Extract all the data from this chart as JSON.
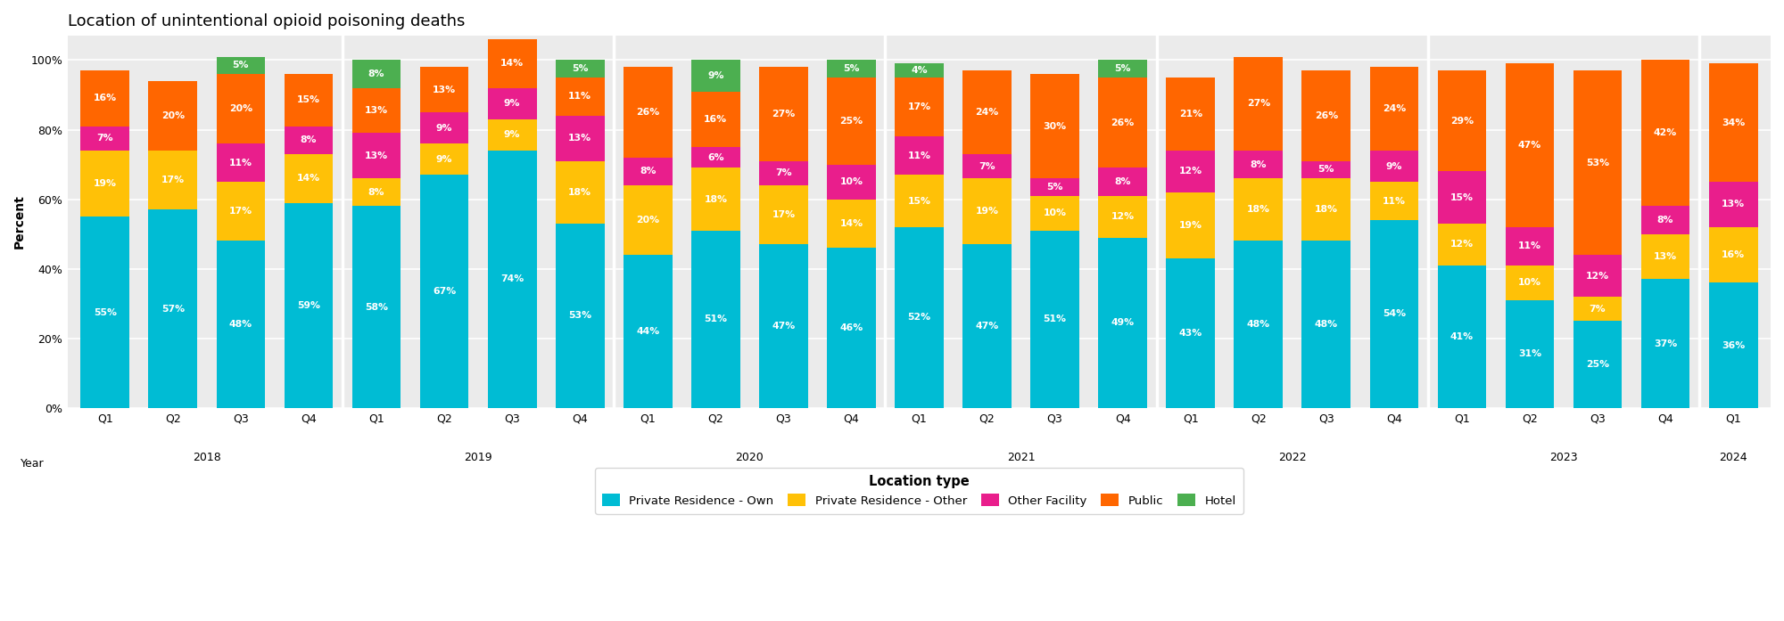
{
  "title": "Location of unintentional opioid poisoning deaths",
  "ylabel": "Percent",
  "quarter_labels": [
    "Q1",
    "Q2",
    "Q3",
    "Q4",
    "Q1",
    "Q2",
    "Q3",
    "Q4",
    "Q1",
    "Q2",
    "Q3",
    "Q4",
    "Q1",
    "Q2",
    "Q3",
    "Q4",
    "Q1",
    "Q2",
    "Q3",
    "Q4",
    "Q1",
    "Q2",
    "Q3",
    "Q4",
    "Q1"
  ],
  "year_labels": [
    "2018",
    "2019",
    "2020",
    "2021",
    "2022",
    "2023",
    "2024"
  ],
  "year_centers": [
    1.5,
    5.5,
    9.5,
    13.5,
    17.5,
    21.5,
    24.0
  ],
  "num_bars": 25,
  "series": {
    "Private Residence - Own": [
      55,
      57,
      48,
      59,
      58,
      67,
      74,
      53,
      44,
      51,
      47,
      46,
      52,
      47,
      51,
      49,
      43,
      48,
      48,
      54,
      41,
      31,
      25,
      37,
      36
    ],
    "Private Residence - Other": [
      19,
      17,
      17,
      14,
      8,
      9,
      9,
      18,
      20,
      18,
      17,
      14,
      15,
      19,
      10,
      12,
      19,
      18,
      18,
      11,
      12,
      10,
      7,
      13,
      16
    ],
    "Other Facility": [
      7,
      0,
      11,
      8,
      13,
      9,
      9,
      13,
      8,
      6,
      7,
      10,
      11,
      7,
      5,
      8,
      12,
      8,
      5,
      9,
      15,
      11,
      12,
      8,
      13
    ],
    "Public": [
      16,
      20,
      20,
      15,
      13,
      13,
      14,
      11,
      26,
      16,
      27,
      25,
      17,
      24,
      30,
      26,
      21,
      27,
      26,
      24,
      29,
      47,
      53,
      42,
      34
    ],
    "Hotel": [
      0,
      0,
      5,
      0,
      8,
      0,
      0,
      5,
      0,
      9,
      0,
      5,
      4,
      0,
      0,
      5,
      0,
      0,
      0,
      0,
      0,
      0,
      0,
      0,
      0
    ]
  },
  "colors": {
    "Private Residence - Own": "#00bcd4",
    "Private Residence - Other": "#ffc107",
    "Other Facility": "#e91e8c",
    "Public": "#ff6600",
    "Hotel": "#4caf50"
  },
  "bar_width": 0.72,
  "background_color": "#ffffff",
  "plot_bg_color": "#ebebeb",
  "divider_positions": [
    3.5,
    7.5,
    11.5,
    15.5,
    19.5,
    23.5
  ],
  "yticks": [
    0,
    20,
    40,
    60,
    80,
    100
  ],
  "ytick_labels": [
    "0%",
    "20%",
    "40%",
    "60%",
    "80%",
    "100%"
  ]
}
